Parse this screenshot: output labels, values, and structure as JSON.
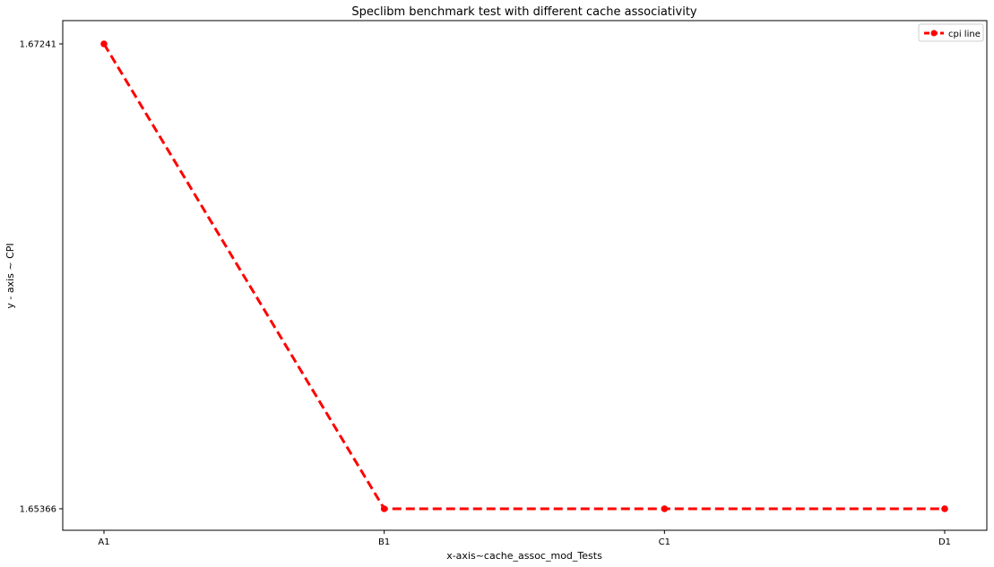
{
  "chart_data": {
    "type": "line",
    "title": "Speclibm benchmark test with different cache associativity",
    "xlabel": "x-axis~cache_assoc_mod_Tests",
    "ylabel": "y - axis ~ CPI",
    "categories": [
      "A1",
      "B1",
      "C1",
      "D1"
    ],
    "y_ticks": [
      "1.65366",
      "1.67241"
    ],
    "grid": false,
    "legend_position": "top-right",
    "line_color": "#ff0000",
    "series": [
      {
        "name": "cpi line",
        "values": [
          1.67241,
          1.65366,
          1.65366,
          1.65366
        ]
      }
    ]
  }
}
